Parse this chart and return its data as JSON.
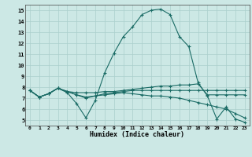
{
  "background_color": "#cce8e5",
  "grid_color": "#aacfcc",
  "line_color": "#1a6b65",
  "xlabel": "Humidex (Indice chaleur)",
  "xlim": [
    -0.5,
    23.5
  ],
  "ylim": [
    4.5,
    15.5
  ],
  "xticks": [
    0,
    1,
    2,
    3,
    4,
    5,
    6,
    7,
    8,
    9,
    10,
    11,
    12,
    13,
    14,
    15,
    16,
    17,
    18,
    19,
    20,
    21,
    22,
    23
  ],
  "yticks": [
    5,
    6,
    7,
    8,
    9,
    10,
    11,
    12,
    13,
    14,
    15
  ],
  "series": [
    {
      "x": [
        0,
        1,
        2,
        3,
        4,
        5,
        6,
        7,
        8,
        9,
        10,
        11,
        12,
        13,
        14,
        15,
        16,
        17,
        18,
        19,
        20,
        21,
        22,
        23
      ],
      "y": [
        7.7,
        7.1,
        7.4,
        7.9,
        7.5,
        6.5,
        5.2,
        6.8,
        9.3,
        11.1,
        12.6,
        13.5,
        14.6,
        15.0,
        15.1,
        14.6,
        12.6,
        11.7,
        8.4,
        7.2,
        5.1,
        6.2,
        5.1,
        4.8
      ]
    },
    {
      "x": [
        0,
        1,
        2,
        3,
        4,
        5,
        6,
        7,
        8,
        9,
        10,
        11,
        12,
        13,
        14,
        15,
        16,
        17,
        18,
        19,
        20,
        21,
        22,
        23
      ],
      "y": [
        7.7,
        7.1,
        7.4,
        7.9,
        7.6,
        7.5,
        7.5,
        7.5,
        7.6,
        7.6,
        7.7,
        7.8,
        7.9,
        8.0,
        8.1,
        8.1,
        8.2,
        8.2,
        8.3,
        7.3,
        7.3,
        7.3,
        7.3,
        7.3
      ]
    },
    {
      "x": [
        0,
        1,
        2,
        3,
        4,
        5,
        6,
        7,
        8,
        9,
        10,
        11,
        12,
        13,
        14,
        15,
        16,
        17,
        18,
        19,
        20,
        21,
        22,
        23
      ],
      "y": [
        7.7,
        7.1,
        7.4,
        7.9,
        7.6,
        7.3,
        7.1,
        7.2,
        7.3,
        7.4,
        7.5,
        7.4,
        7.3,
        7.2,
        7.2,
        7.1,
        7.0,
        6.8,
        6.6,
        6.4,
        6.2,
        6.0,
        5.6,
        5.2
      ]
    },
    {
      "x": [
        0,
        1,
        2,
        3,
        4,
        5,
        6,
        7,
        8,
        9,
        10,
        11,
        12,
        13,
        14,
        15,
        16,
        17,
        18,
        19,
        20,
        21,
        22,
        23
      ],
      "y": [
        7.7,
        7.1,
        7.4,
        7.9,
        7.6,
        7.3,
        7.0,
        7.2,
        7.4,
        7.5,
        7.6,
        7.7,
        7.7,
        7.7,
        7.7,
        7.7,
        7.7,
        7.7,
        7.7,
        7.7,
        7.7,
        7.7,
        7.7,
        7.7
      ]
    }
  ]
}
